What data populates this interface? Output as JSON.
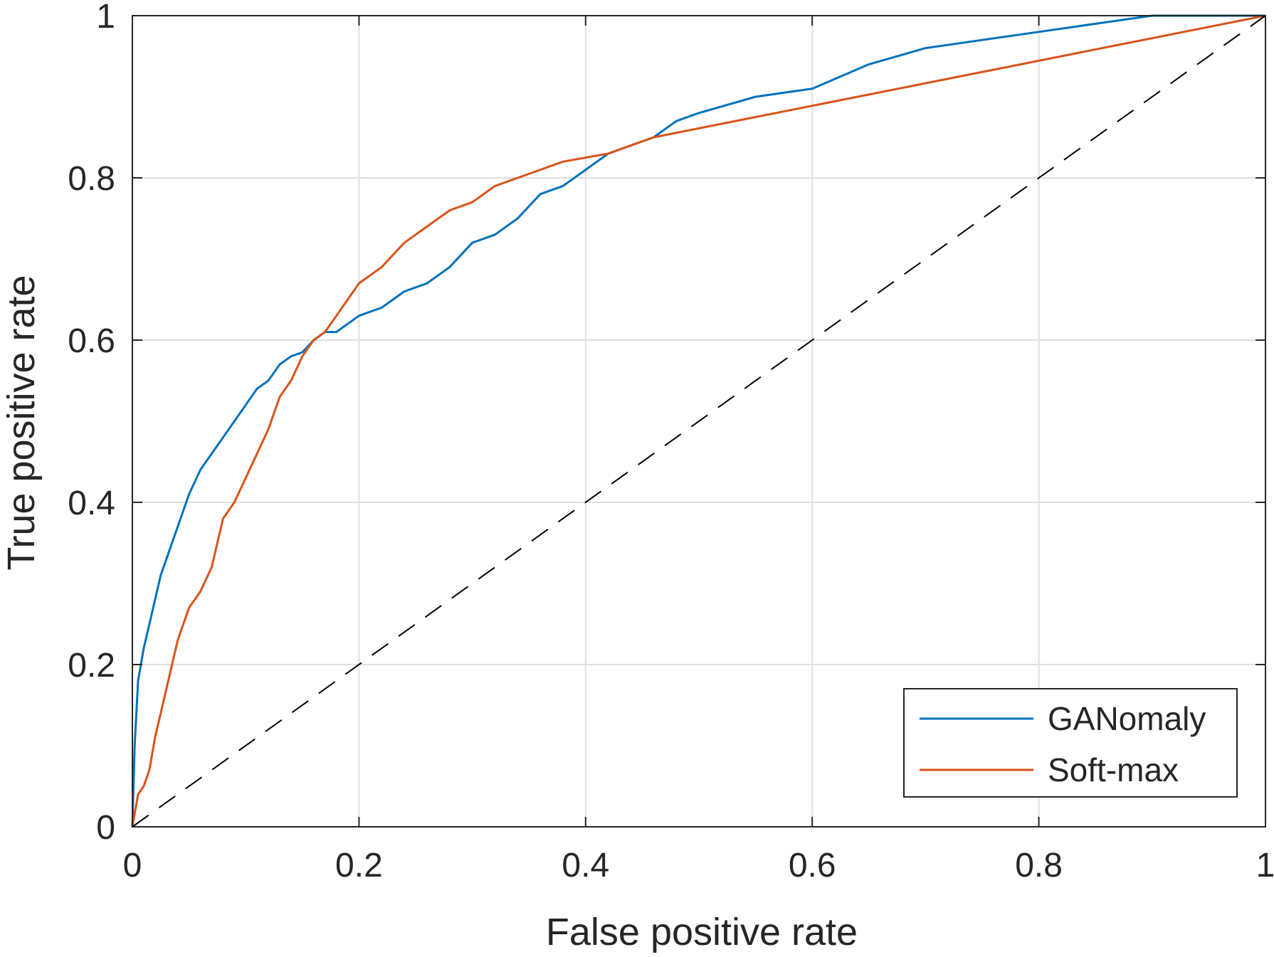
{
  "chart_data": {
    "type": "line",
    "title": "",
    "xlabel": "False positive rate",
    "ylabel": "True positive rate",
    "xlim": [
      0,
      1
    ],
    "ylim": [
      0,
      1
    ],
    "x_ticks": [
      "0",
      "0.2",
      "0.4",
      "0.6",
      "0.8",
      "1"
    ],
    "y_ticks": [
      "0",
      "0.2",
      "0.4",
      "0.6",
      "0.8",
      "1"
    ],
    "grid": true,
    "legend_position": "bottom-right",
    "series": [
      {
        "name": "GANomaly",
        "color": "#0072BD",
        "x": [
          0,
          0.002,
          0.005,
          0.01,
          0.015,
          0.02,
          0.025,
          0.03,
          0.04,
          0.05,
          0.06,
          0.07,
          0.08,
          0.09,
          0.1,
          0.11,
          0.12,
          0.13,
          0.14,
          0.15,
          0.16,
          0.17,
          0.18,
          0.19,
          0.2,
          0.22,
          0.24,
          0.26,
          0.28,
          0.3,
          0.32,
          0.34,
          0.36,
          0.38,
          0.4,
          0.42,
          0.44,
          0.46,
          0.48,
          0.5,
          0.55,
          0.6,
          0.65,
          0.7,
          0.75,
          0.8,
          0.85,
          0.9,
          0.95,
          1
        ],
        "y": [
          0,
          0.1,
          0.18,
          0.22,
          0.25,
          0.28,
          0.31,
          0.33,
          0.37,
          0.41,
          0.44,
          0.46,
          0.48,
          0.5,
          0.52,
          0.54,
          0.55,
          0.57,
          0.58,
          0.585,
          0.6,
          0.61,
          0.61,
          0.62,
          0.63,
          0.64,
          0.66,
          0.67,
          0.69,
          0.72,
          0.73,
          0.75,
          0.78,
          0.79,
          0.81,
          0.83,
          0.84,
          0.85,
          0.87,
          0.88,
          0.9,
          0.91,
          0.94,
          0.96,
          0.97,
          0.98,
          0.99,
          1.0,
          1.0,
          1.0
        ]
      },
      {
        "name": "Soft-max",
        "color": "#D95319",
        "x": [
          0,
          0.005,
          0.01,
          0.015,
          0.02,
          0.025,
          0.03,
          0.04,
          0.05,
          0.06,
          0.07,
          0.08,
          0.09,
          0.1,
          0.11,
          0.12,
          0.13,
          0.14,
          0.15,
          0.16,
          0.17,
          0.18,
          0.19,
          0.2,
          0.22,
          0.24,
          0.26,
          0.28,
          0.3,
          0.32,
          0.34,
          0.36,
          0.38,
          0.4,
          0.42,
          0.44,
          0.46,
          1
        ],
        "y": [
          0,
          0.04,
          0.05,
          0.07,
          0.11,
          0.14,
          0.17,
          0.23,
          0.27,
          0.29,
          0.32,
          0.38,
          0.4,
          0.43,
          0.46,
          0.49,
          0.53,
          0.55,
          0.58,
          0.6,
          0.61,
          0.63,
          0.65,
          0.67,
          0.69,
          0.72,
          0.74,
          0.76,
          0.77,
          0.79,
          0.8,
          0.81,
          0.82,
          0.825,
          0.83,
          0.84,
          0.85,
          1.0
        ]
      },
      {
        "name": "",
        "color": "#000000",
        "dashed": true,
        "x": [
          0,
          1
        ],
        "y": [
          0,
          1
        ]
      }
    ]
  }
}
